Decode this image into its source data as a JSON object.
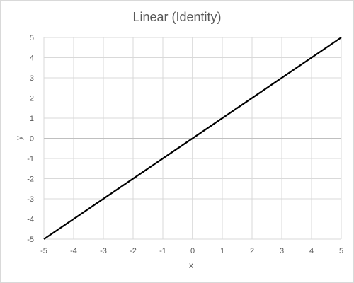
{
  "chart_data": {
    "type": "line",
    "title": "Linear (Identity)",
    "xlabel": "x",
    "ylabel": "y",
    "xlim": [
      -5,
      5
    ],
    "ylim": [
      -5,
      5
    ],
    "x_ticks": [
      -5,
      -4,
      -3,
      -2,
      -1,
      0,
      1,
      2,
      3,
      4,
      5
    ],
    "y_ticks": [
      -5,
      -4,
      -3,
      -2,
      -1,
      0,
      1,
      2,
      3,
      4,
      5
    ],
    "grid": true,
    "series": [
      {
        "x": [
          -5,
          5
        ],
        "y": [
          -5,
          5
        ],
        "color": "#000000"
      }
    ]
  }
}
